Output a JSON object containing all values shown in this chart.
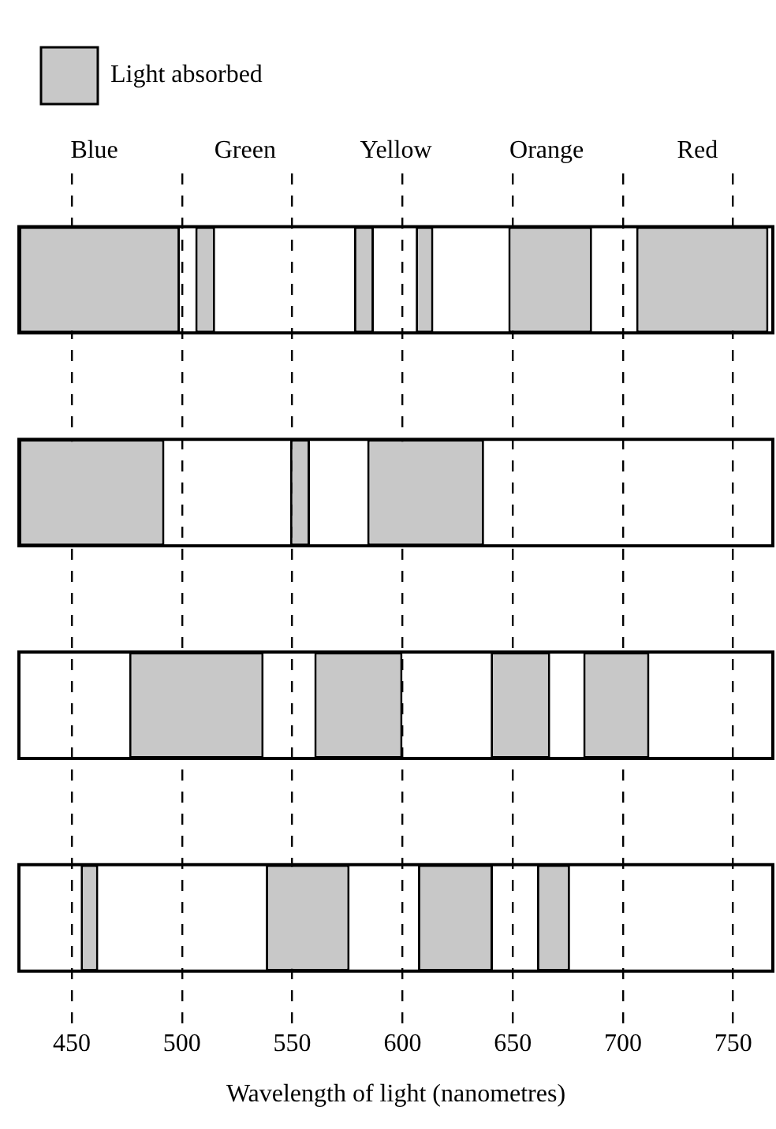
{
  "chart_data": {
    "type": "bar",
    "orientation": "horizontal",
    "xlabel": "Wavelength of light (nanometres)",
    "categories": [
      null,
      null,
      null,
      null
    ],
    "series": [
      {
        "name": "Light absorbed",
        "color": "#c8c8c8",
        "base": [
          426,
          426,
          476,
          454
        ],
        "values": [
          73,
          66,
          61,
          8
        ]
      },
      {
        "color": "#c8c8c8",
        "base": [
          506,
          549,
          560,
          538
        ],
        "values": [
          9,
          9,
          40,
          38
        ]
      },
      {
        "color": "#c8c8c8",
        "base": [
          578,
          584,
          640,
          607
        ],
        "values": [
          9,
          53,
          27,
          34
        ]
      },
      {
        "color": "#c8c8c8",
        "base": [
          606,
          null,
          682,
          661
        ],
        "values": [
          8,
          null,
          30,
          15
        ]
      },
      {
        "color": "#c8c8c8",
        "base": [
          648,
          null,
          null,
          null
        ],
        "values": [
          38,
          null,
          null,
          null
        ]
      },
      {
        "color": "#c8c8c8",
        "base": [
          706,
          null,
          null,
          null
        ],
        "values": [
          60,
          null,
          null,
          null
        ]
      }
    ],
    "xlim": [
      426,
      768
    ],
    "xticks": [
      450,
      500,
      550,
      600,
      650,
      700,
      750
    ],
    "annotations": [
      "Blue",
      "Green",
      "Yellow",
      "Orange",
      "Red"
    ],
    "grid": "x",
    "legend": "top left"
  }
}
